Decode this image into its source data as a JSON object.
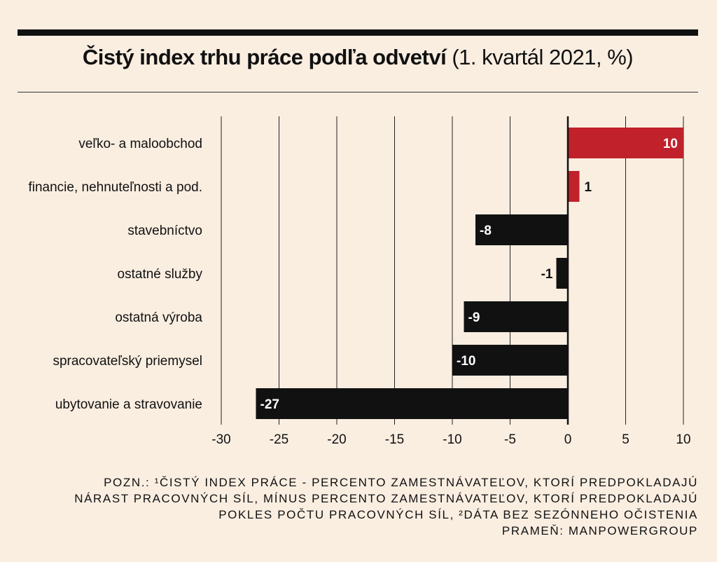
{
  "title": {
    "main": "Čistý index trhu práce podľa odvetví",
    "sub": "(1. kvartál 2021, %)"
  },
  "notes": [
    "POZN.: ¹ČISTÝ INDEX PRÁCE - PERCENTO ZAMESTNÁVATEĽOV, KTORÍ PREDPOKLADAJÚ",
    "NÁRAST PRACOVNÝCH SÍL, MÍNUS PERCENTO ZAMESTNÁVATEĽOV, KTORÍ PREDPOKLADAJÚ",
    "POKLES POČTU PRACOVNÝCH SÍL, ²DÁTA BEZ SEZÓNNEHO OČISTENIA",
    "PRAMEŇ: MANPOWERGROUP"
  ],
  "colors": {
    "background": "#faeee1",
    "positive": "#c0212b",
    "negative": "#111111",
    "grid": "#222222"
  },
  "chart_data": {
    "type": "bar",
    "orientation": "horizontal",
    "categories": [
      "veľko- a maloobchod",
      "financie, nehnuteľnosti a pod.",
      "stavebníctvo",
      "ostatné služby",
      "ostatná výroba",
      "spracovateľský priemysel",
      "ubytovanie a stravovanie"
    ],
    "values": [
      10,
      1,
      -8,
      -1,
      -9,
      -10,
      -27
    ],
    "value_labels": [
      "10",
      "1",
      "-8",
      "-1",
      "-9",
      "-10",
      "-27"
    ],
    "xlim": [
      -30,
      10
    ],
    "xticks": [
      -30,
      -25,
      -20,
      -15,
      -10,
      -5,
      0,
      5,
      10
    ],
    "xtick_labels": [
      "-30",
      "-25",
      "-20",
      "-15",
      "-10",
      "-5",
      "0",
      "5",
      "10"
    ],
    "grid": true
  }
}
